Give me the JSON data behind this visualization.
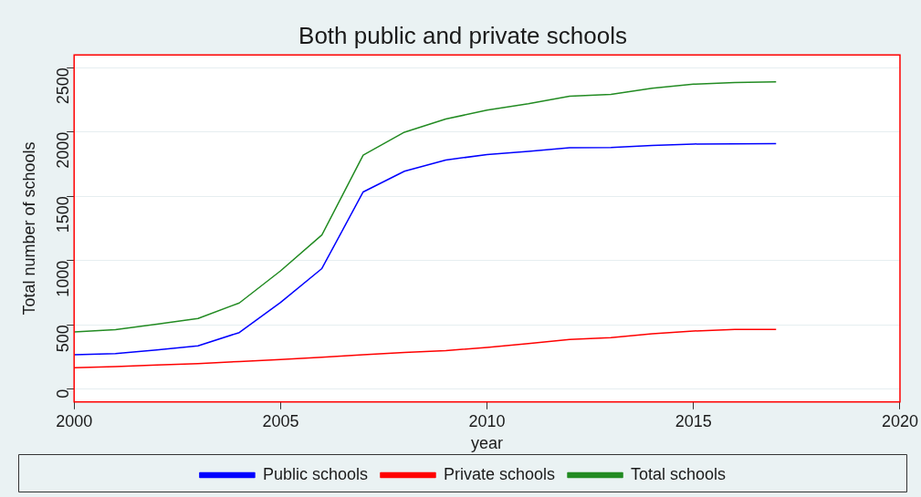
{
  "chart_data": {
    "type": "line",
    "title": "Both public and private schools",
    "xlabel": "year",
    "ylabel": "Total number of schools",
    "x": [
      2000,
      2001,
      2002,
      2003,
      2004,
      2005,
      2006,
      2007,
      2008,
      2009,
      2010,
      2011,
      2012,
      2013,
      2014,
      2015,
      2016,
      2017
    ],
    "series": [
      {
        "name": "Public schools",
        "color": "#0000ff",
        "values": [
          268,
          276,
          305,
          337,
          440,
          675,
          938,
          1534,
          1695,
          1782,
          1825,
          1850,
          1877,
          1879,
          1895,
          1907,
          1908,
          1910
        ]
      },
      {
        "name": "Private schools",
        "color": "#ff0000",
        "values": [
          166,
          175,
          187,
          199,
          215,
          230,
          248,
          268,
          286,
          299,
          324,
          355,
          386,
          401,
          430,
          452,
          465,
          465
        ]
      },
      {
        "name": "Total schools",
        "color": "#228b22",
        "values": [
          445,
          462,
          505,
          550,
          670,
          920,
          1199,
          1820,
          1999,
          2101,
          2170,
          2220,
          2278,
          2293,
          2340,
          2372,
          2385,
          2390
        ]
      }
    ],
    "xlim": [
      2000,
      2020
    ],
    "xticks": [
      2000,
      2005,
      2010,
      2015,
      2020
    ],
    "ylim": [
      -100,
      2600
    ],
    "yticks": [
      0,
      500,
      1000,
      1500,
      2000,
      2500
    ],
    "grid": "y",
    "legend": "bottom",
    "marker": "none",
    "line_style": "solid"
  }
}
